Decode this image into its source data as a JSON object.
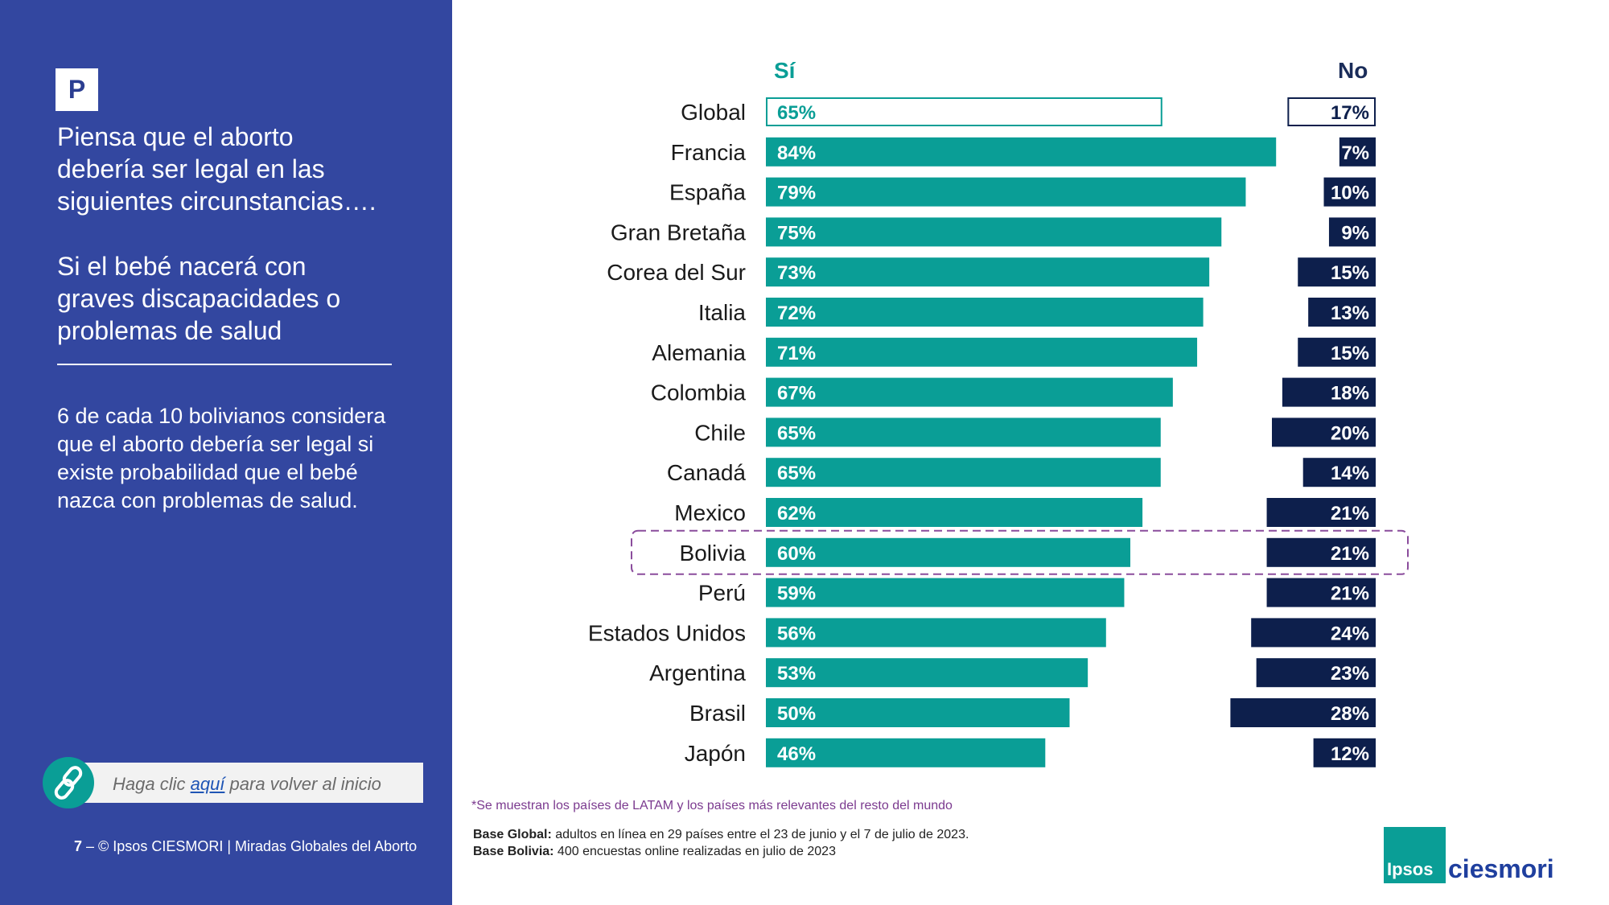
{
  "sidebar": {
    "badge": "P",
    "question": "Piensa que el aborto\ndebería ser legal en las\nsiguientes circunstancias….",
    "subquestion": "Si el bebé nacerá con\ngraves discapacidades  o\nproblemas de salud",
    "summary": "6 de cada 10 bolivianos considera que el aborto debería ser legal si existe probabilidad que el bebé nazca con problemas de salud.",
    "home_link": {
      "before": "Haga clic ",
      "link": "aquí",
      "after": " para volver al inicio"
    },
    "footer": {
      "page_number": "7",
      "dash": " – ",
      "text": "© Ipsos CIESMORI | Miradas Globales del Aborto"
    }
  },
  "colors": {
    "sidebar_bg": "#3347a0",
    "si_bar": "#0a9e96",
    "no_bar": "#0d1f4c",
    "highlight_border": "#8a4c9c"
  },
  "note": "*Se muestran los países de LATAM y los países más relevantes del resto del mundo",
  "base_global": {
    "label": "Base Global:",
    "text": " adultos en línea en 29 países entre el 23 de junio y el 7 de julio de 2023."
  },
  "base_bolivia": {
    "label": "Base Bolivia:",
    "text": " 400 encuestas online realizadas en julio de 2023"
  },
  "logo": {
    "ipsos": "Ipsos",
    "ciesmori": "ciesmori"
  },
  "chart_data": {
    "type": "bar",
    "orientation": "horizontal",
    "headers": {
      "si": "Sí",
      "no": "No"
    },
    "categories": [
      "Global",
      "Francia",
      "España",
      "Gran Bretaña",
      "Corea del Sur",
      "Italia",
      "Alemania",
      "Colombia",
      "Chile",
      "Canadá",
      "Mexico",
      "Bolivia",
      "Perú",
      "Estados Unidos",
      "Argentina",
      "Brasil",
      "Japón"
    ],
    "series": [
      {
        "name": "Sí",
        "values": [
          65,
          84,
          79,
          75,
          73,
          72,
          71,
          67,
          65,
          65,
          62,
          60,
          59,
          56,
          53,
          50,
          46
        ]
      },
      {
        "name": "No",
        "values": [
          17,
          7,
          10,
          9,
          15,
          13,
          15,
          18,
          20,
          14,
          21,
          21,
          21,
          24,
          23,
          28,
          12
        ]
      }
    ],
    "value_suffix": "%",
    "outlined_category": "Global",
    "highlighted_category": "Bolivia"
  }
}
